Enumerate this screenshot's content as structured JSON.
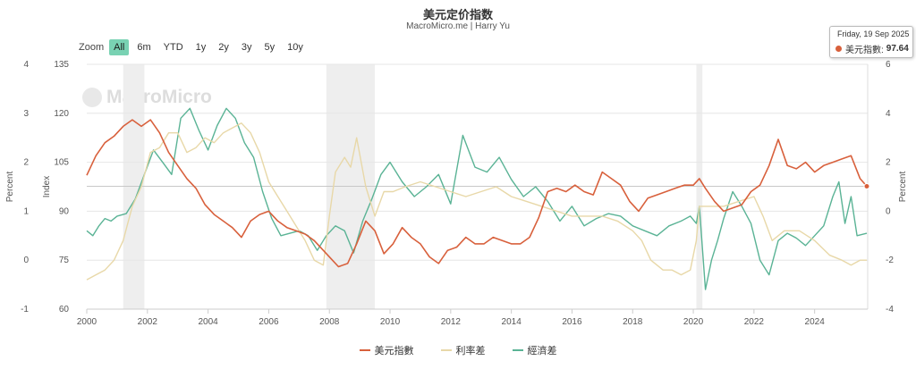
{
  "header": {
    "title": "美元定价指数",
    "subtitle": "MacroMicro.me | Harry Yu"
  },
  "zoom": {
    "label": "Zoom",
    "buttons": [
      "All",
      "6m",
      "YTD",
      "1y",
      "2y",
      "3y",
      "5y",
      "10y"
    ],
    "active": "All"
  },
  "tooltip": {
    "date": "Friday, 19 Sep 2025",
    "series": "美元指數:",
    "value": "97.64"
  },
  "watermark": "MacroMicro",
  "chart_data": {
    "type": "line",
    "x_ticks": [
      "2000",
      "2002",
      "2004",
      "2006",
      "2008",
      "2010",
      "2012",
      "2014",
      "2016",
      "2018",
      "2020",
      "2022",
      "2024"
    ],
    "y_axes": {
      "percent_left": {
        "label": "Percent",
        "ticks": [
          "4",
          "3",
          "2",
          "1",
          "0",
          "-1"
        ],
        "range": [
          -1,
          4
        ]
      },
      "index": {
        "label": "Index",
        "ticks": [
          "135",
          "120",
          "105",
          "90",
          "75",
          "60"
        ],
        "range": [
          60,
          135
        ]
      },
      "percent_right": {
        "label": "Percent",
        "ticks": [
          "6",
          "4",
          "2",
          "0",
          "-2",
          "-4"
        ],
        "range": [
          -4,
          6
        ]
      }
    },
    "shaded_periods": [
      [
        2001.2,
        2001.9
      ],
      [
        2007.9,
        2009.5
      ],
      [
        2020.1,
        2020.3
      ]
    ],
    "series": [
      {
        "name": "美元指數",
        "axis": "index",
        "color": "#d8603c",
        "x": [
          2000.0,
          2000.3,
          2000.6,
          2000.9,
          2001.2,
          2001.5,
          2001.8,
          2002.1,
          2002.4,
          2002.7,
          2003.0,
          2003.3,
          2003.6,
          2003.9,
          2004.2,
          2004.5,
          2004.8,
          2005.1,
          2005.4,
          2005.7,
          2006.0,
          2006.3,
          2006.6,
          2006.9,
          2007.2,
          2007.5,
          2007.8,
          2008.1,
          2008.3,
          2008.6,
          2008.9,
          2009.2,
          2009.5,
          2009.8,
          2010.1,
          2010.4,
          2010.7,
          2011.0,
          2011.3,
          2011.6,
          2011.9,
          2012.2,
          2012.5,
          2012.8,
          2013.1,
          2013.4,
          2013.7,
          2014.0,
          2014.3,
          2014.6,
          2014.9,
          2015.2,
          2015.5,
          2015.8,
          2016.1,
          2016.4,
          2016.7,
          2017.0,
          2017.3,
          2017.6,
          2017.9,
          2018.2,
          2018.5,
          2018.8,
          2019.1,
          2019.4,
          2019.7,
          2020.0,
          2020.2,
          2020.4,
          2020.7,
          2021.0,
          2021.3,
          2021.6,
          2021.9,
          2022.2,
          2022.5,
          2022.8,
          2023.1,
          2023.4,
          2023.7,
          2024.0,
          2024.3,
          2024.6,
          2024.9,
          2025.2,
          2025.5,
          2025.72
        ],
        "values": [
          101,
          107,
          111,
          113,
          116,
          118,
          116,
          118,
          114,
          108,
          104,
          100,
          97,
          92,
          89,
          87,
          85,
          82,
          87,
          89,
          90,
          87,
          85,
          84,
          83,
          81,
          78,
          75,
          73,
          74,
          80,
          87,
          84,
          77,
          80,
          85,
          82,
          80,
          76,
          74,
          78,
          79,
          82,
          80,
          80,
          82,
          81,
          80,
          80,
          82,
          88,
          96,
          97,
          96,
          98,
          96,
          95,
          102,
          100,
          98,
          93,
          90,
          94,
          95,
          96,
          97,
          98,
          98,
          100,
          97,
          93,
          90,
          91,
          92,
          96,
          98,
          104,
          112,
          104,
          103,
          105,
          102,
          104,
          105,
          106,
          107,
          100,
          97.64
        ]
      },
      {
        "name": "利率差",
        "axis": "percent_left",
        "color": "#e8d8a8",
        "x": [
          2000.0,
          2000.3,
          2000.6,
          2000.9,
          2001.2,
          2001.5,
          2001.8,
          2002.1,
          2002.4,
          2002.7,
          2003.0,
          2003.3,
          2003.6,
          2003.9,
          2004.2,
          2004.5,
          2004.8,
          2005.1,
          2005.4,
          2005.7,
          2006.0,
          2006.3,
          2006.6,
          2006.9,
          2007.2,
          2007.5,
          2007.8,
          2008.0,
          2008.2,
          2008.5,
          2008.7,
          2008.9,
          2009.2,
          2009.5,
          2009.8,
          2010.1,
          2010.5,
          2011.0,
          2011.5,
          2012.0,
          2012.5,
          2013.0,
          2013.5,
          2014.0,
          2014.5,
          2015.0,
          2015.5,
          2016.0,
          2016.5,
          2017.0,
          2017.5,
          2018.0,
          2018.3,
          2018.6,
          2019.0,
          2019.3,
          2019.6,
          2019.9,
          2020.1,
          2020.2,
          2020.4,
          2021.0,
          2021.5,
          2022.0,
          2022.3,
          2022.6,
          2023.0,
          2023.5,
          2024.0,
          2024.5,
          2024.9,
          2025.2,
          2025.5,
          2025.72
        ],
        "values": [
          -0.4,
          -0.3,
          -0.2,
          0.0,
          0.4,
          1.1,
          1.5,
          2.2,
          2.3,
          2.6,
          2.6,
          2.2,
          2.3,
          2.5,
          2.4,
          2.6,
          2.7,
          2.8,
          2.6,
          2.2,
          1.6,
          1.3,
          1.0,
          0.7,
          0.4,
          0.0,
          -0.1,
          0.9,
          1.8,
          2.1,
          1.9,
          2.5,
          1.5,
          0.9,
          1.4,
          1.4,
          1.5,
          1.6,
          1.5,
          1.4,
          1.3,
          1.4,
          1.5,
          1.3,
          1.2,
          1.1,
          1.0,
          0.9,
          0.9,
          0.9,
          0.8,
          0.6,
          0.4,
          0.0,
          -0.2,
          -0.2,
          -0.3,
          -0.2,
          0.4,
          1.1,
          1.1,
          1.1,
          1.2,
          1.3,
          0.9,
          0.4,
          0.6,
          0.6,
          0.4,
          0.1,
          0.0,
          -0.1,
          0.0,
          0.0
        ]
      },
      {
        "name": "經濟差",
        "axis": "percent_right",
        "color": "#5ab395",
        "x": [
          2000.0,
          2000.2,
          2000.4,
          2000.6,
          2000.8,
          2001.0,
          2001.3,
          2001.6,
          2001.9,
          2002.2,
          2002.5,
          2002.8,
          2003.1,
          2003.4,
          2003.7,
          2004.0,
          2004.3,
          2004.6,
          2004.9,
          2005.2,
          2005.5,
          2005.8,
          2006.1,
          2006.4,
          2006.7,
          2007.0,
          2007.3,
          2007.6,
          2007.9,
          2008.2,
          2008.5,
          2008.8,
          2009.1,
          2009.4,
          2009.7,
          2010.0,
          2010.4,
          2010.8,
          2011.2,
          2011.6,
          2012.0,
          2012.4,
          2012.8,
          2013.2,
          2013.6,
          2014.0,
          2014.4,
          2014.8,
          2015.2,
          2015.6,
          2016.0,
          2016.4,
          2016.8,
          2017.2,
          2017.6,
          2018.0,
          2018.4,
          2018.8,
          2019.2,
          2019.6,
          2019.9,
          2020.1,
          2020.2,
          2020.4,
          2020.6,
          2020.8,
          2021.0,
          2021.3,
          2021.6,
          2021.9,
          2022.2,
          2022.5,
          2022.8,
          2023.1,
          2023.4,
          2023.7,
          2024.0,
          2024.3,
          2024.6,
          2024.8,
          2025.0,
          2025.2,
          2025.4,
          2025.72
        ],
        "values": [
          -0.8,
          -1.0,
          -0.6,
          -0.3,
          -0.4,
          -0.2,
          -0.1,
          0.5,
          1.5,
          2.5,
          2.0,
          1.5,
          3.8,
          4.2,
          3.3,
          2.5,
          3.5,
          4.2,
          3.8,
          2.8,
          2.2,
          0.8,
          -0.3,
          -1.0,
          -0.9,
          -0.8,
          -1.0,
          -1.6,
          -1.0,
          -0.6,
          -0.8,
          -1.7,
          -0.4,
          0.5,
          1.5,
          2.0,
          1.2,
          0.6,
          1.0,
          1.5,
          0.3,
          3.1,
          1.8,
          1.6,
          2.2,
          1.3,
          0.6,
          1.0,
          0.4,
          -0.4,
          0.2,
          -0.6,
          -0.3,
          -0.1,
          -0.2,
          -0.6,
          -0.8,
          -1.0,
          -0.6,
          -0.4,
          -0.2,
          -0.5,
          0.2,
          -3.2,
          -2.0,
          -1.2,
          -0.3,
          0.8,
          0.2,
          -0.5,
          -2.0,
          -2.6,
          -1.2,
          -0.9,
          -1.1,
          -1.4,
          -1.0,
          -0.6,
          0.6,
          1.2,
          -0.5,
          0.6,
          -1.0,
          -0.9
        ]
      }
    ],
    "legend": {
      "position": "bottom",
      "items": [
        "美元指數",
        "利率差",
        "經濟差"
      ]
    }
  }
}
